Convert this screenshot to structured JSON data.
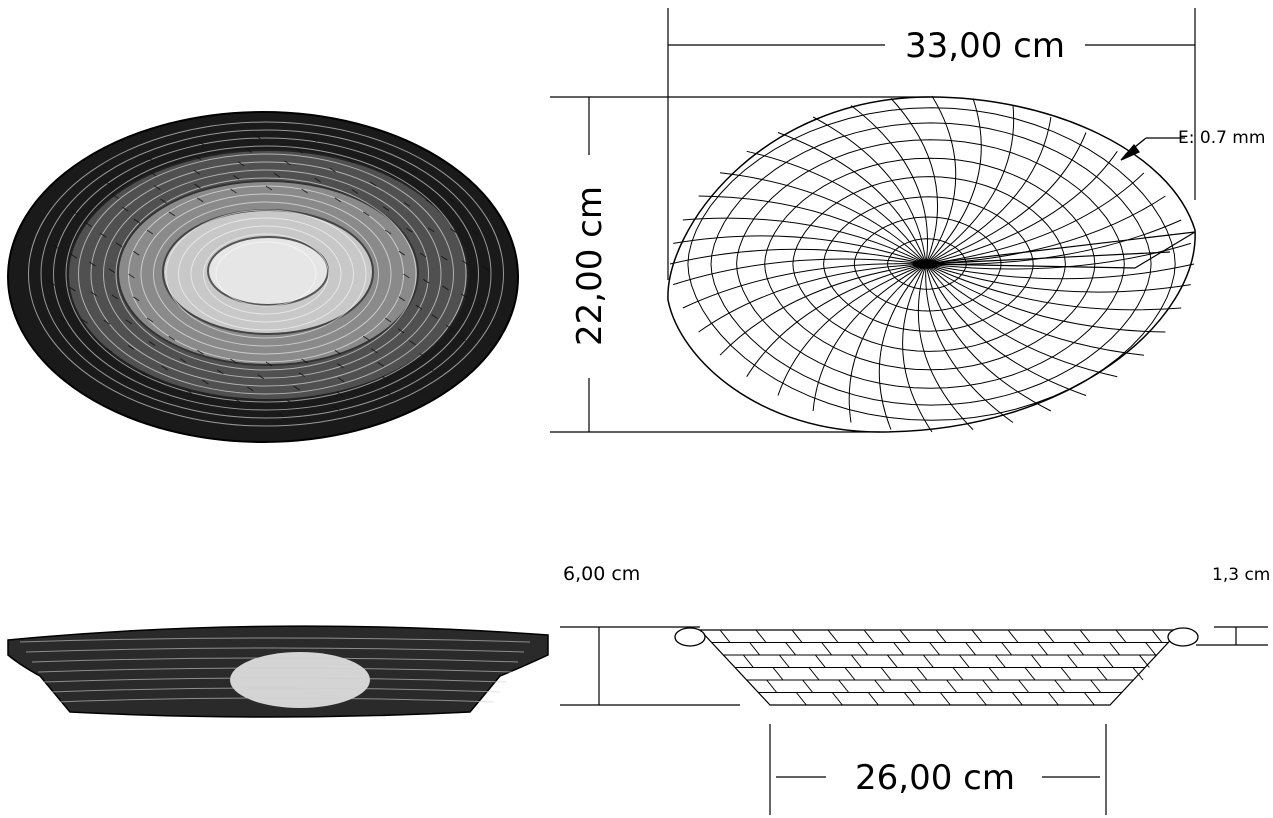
{
  "top_view": {
    "width_label": "33,00 cm",
    "height_label": "22,00 cm",
    "thickness_label": "E: 0.7 mm"
  },
  "side_view": {
    "height_label": "6,00 cm",
    "rim_label": "1,3 cm",
    "base_label": "26,00 cm"
  },
  "colors": {
    "ink": "#000000",
    "paper": "#ffffff"
  }
}
